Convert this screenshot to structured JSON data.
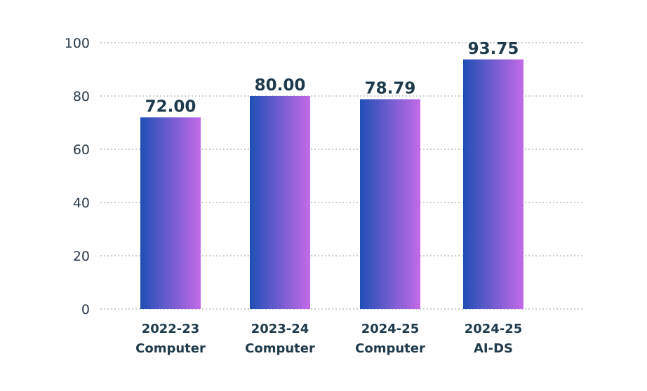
{
  "chart_data": {
    "type": "bar",
    "categories": [
      [
        "2022-23",
        "Computer"
      ],
      [
        "2023-24",
        "Computer"
      ],
      [
        "2024-25",
        "Computer"
      ],
      [
        "2024-25",
        "AI-DS"
      ]
    ],
    "values": [
      72.0,
      80.0,
      78.79,
      93.75
    ],
    "data_labels": [
      "72.00",
      "80.00",
      "78.79",
      "93.75"
    ],
    "y_ticks": [
      0,
      20,
      40,
      60,
      80,
      100
    ],
    "ylim": [
      0,
      100
    ],
    "grid": true,
    "grid_style": "dotted",
    "bar_gradient": [
      "#1f4fb5",
      "#c46ae8"
    ],
    "text_color": "#1e3a4c"
  }
}
